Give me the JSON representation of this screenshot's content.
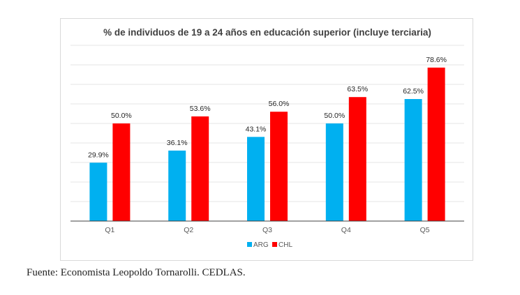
{
  "caption": "Fuente: Economista Leopoldo Tornarolli. CEDLAS.",
  "colors": {
    "ARG": "#00b0f0",
    "CHL": "#ff0000",
    "gridline": "#e6e6e6",
    "axis": "#404040"
  },
  "chart_data": {
    "type": "bar",
    "title": "% de individuos de 19 a 24 años en educación superior (incluye terciaria)",
    "xlabel": "",
    "ylabel": "",
    "categories": [
      "Q1",
      "Q2",
      "Q3",
      "Q4",
      "Q5"
    ],
    "series": [
      {
        "name": "ARG",
        "values": [
          29.9,
          36.1,
          43.1,
          50.0,
          62.5
        ],
        "labels": [
          "29.9%",
          "36.1%",
          "43.1%",
          "50.0%",
          "62.5%"
        ]
      },
      {
        "name": "CHL",
        "values": [
          50.0,
          53.6,
          56.0,
          63.5,
          78.6
        ],
        "labels": [
          "50.0%",
          "53.6%",
          "56.0%",
          "63.5%",
          "78.6%"
        ]
      }
    ],
    "ylim": [
      0,
      90
    ],
    "gridlines": [
      10,
      20,
      30,
      40,
      50,
      60,
      70,
      80,
      90
    ],
    "grid": true,
    "legend": "bottom"
  }
}
